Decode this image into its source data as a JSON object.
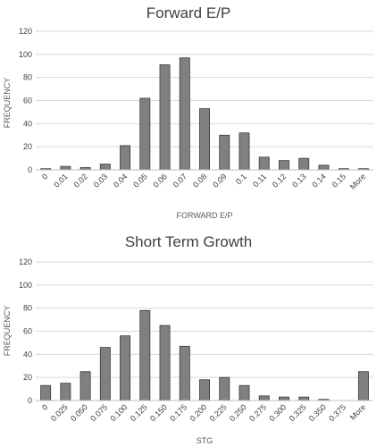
{
  "chart_data": [
    {
      "type": "bar",
      "title": "Forward E/P",
      "xlabel": "FORWARD E/P",
      "ylabel": "FREQUENCY",
      "ylim": [
        0,
        120
      ],
      "yticks": [
        0,
        20,
        40,
        60,
        80,
        100,
        120
      ],
      "grid": true,
      "categories": [
        "0",
        "0.01",
        "0.02",
        "0.03",
        "0.04",
        "0.05",
        "0.06",
        "0.07",
        "0.08",
        "0.09",
        "0.1",
        "0.11",
        "0.12",
        "0.13",
        "0.14",
        "0.15",
        "More"
      ],
      "values": [
        1,
        3,
        2,
        5,
        21,
        62,
        91,
        97,
        53,
        30,
        32,
        11,
        8,
        10,
        4,
        1,
        1
      ],
      "bar_color": "#808080"
    },
    {
      "type": "bar",
      "title": "Short Term Growth",
      "xlabel": "STG",
      "ylabel": "FREQUENCY",
      "ylim": [
        0,
        120
      ],
      "yticks": [
        0,
        20,
        40,
        60,
        80,
        100,
        120
      ],
      "grid": true,
      "categories": [
        "0",
        "0.025",
        "0.050",
        "0.075",
        "0.100",
        "0.125",
        "0.150",
        "0.175",
        "0.200",
        "0.225",
        "0.250",
        "0.275",
        "0.300",
        "0.325",
        "0.350",
        "0.375",
        "More"
      ],
      "values": [
        13,
        15,
        25,
        46,
        56,
        78,
        65,
        47,
        18,
        20,
        13,
        4,
        3,
        3,
        1,
        0,
        25
      ],
      "bar_color": "#808080"
    }
  ]
}
